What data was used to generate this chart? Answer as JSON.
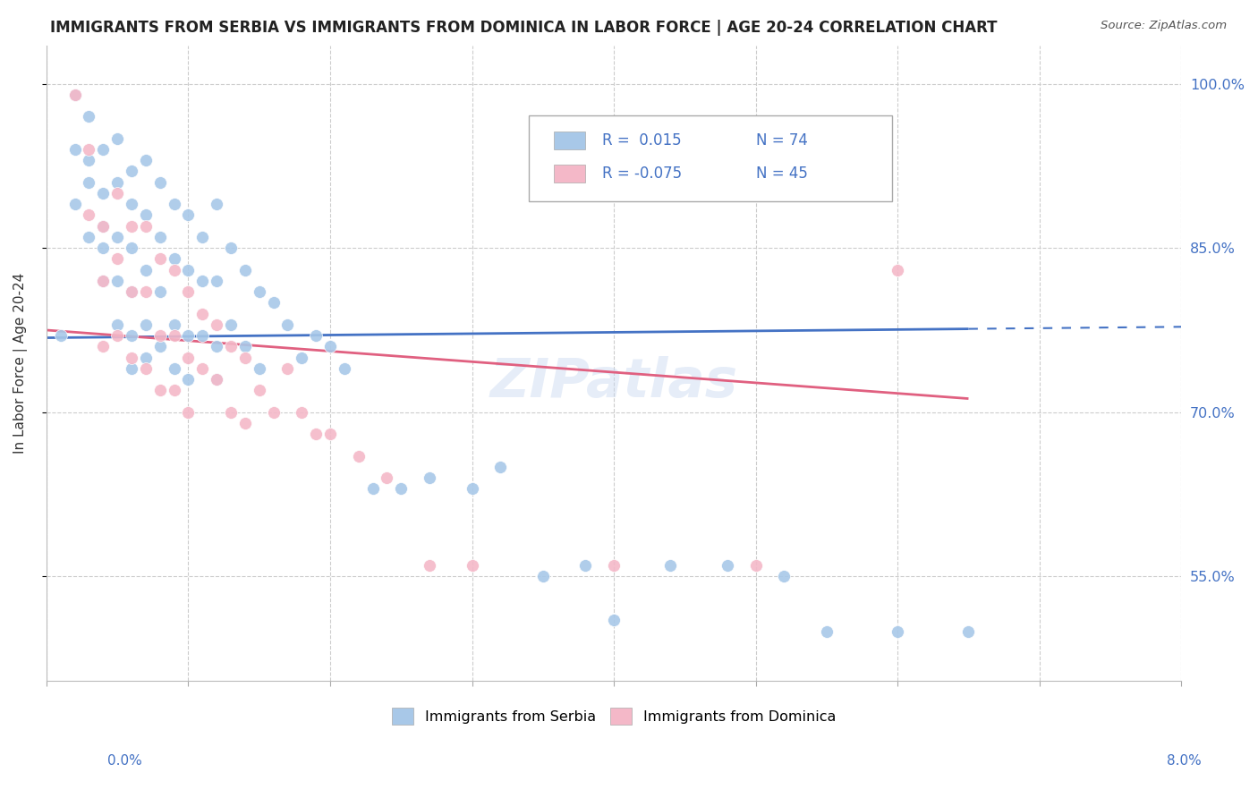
{
  "title": "IMMIGRANTS FROM SERBIA VS IMMIGRANTS FROM DOMINICA IN LABOR FORCE | AGE 20-24 CORRELATION CHART",
  "source": "Source: ZipAtlas.com",
  "ylabel": "In Labor Force | Age 20-24",
  "xmin": 0.0,
  "xmax": 0.08,
  "ymin": 0.455,
  "ymax": 1.035,
  "serbia_R": 0.015,
  "serbia_N": 74,
  "dominica_R": -0.075,
  "dominica_N": 45,
  "serbia_color": "#a8c8e8",
  "dominica_color": "#f4b8c8",
  "serbia_line_color": "#4472c4",
  "dominica_line_color": "#e06080",
  "serbia_line_y0": 0.768,
  "serbia_line_y1": 0.778,
  "serbia_line_solid_end": 0.065,
  "dominica_line_y0": 0.775,
  "dominica_line_y1": 0.698,
  "dominica_line_solid_end": 0.065,
  "serbia_x": [
    0.001,
    0.002,
    0.002,
    0.002,
    0.003,
    0.003,
    0.003,
    0.003,
    0.004,
    0.004,
    0.004,
    0.004,
    0.004,
    0.005,
    0.005,
    0.005,
    0.005,
    0.005,
    0.006,
    0.006,
    0.006,
    0.006,
    0.006,
    0.006,
    0.007,
    0.007,
    0.007,
    0.007,
    0.007,
    0.008,
    0.008,
    0.008,
    0.008,
    0.009,
    0.009,
    0.009,
    0.009,
    0.01,
    0.01,
    0.01,
    0.01,
    0.011,
    0.011,
    0.011,
    0.012,
    0.012,
    0.012,
    0.012,
    0.013,
    0.013,
    0.014,
    0.014,
    0.015,
    0.015,
    0.016,
    0.017,
    0.018,
    0.019,
    0.02,
    0.021,
    0.023,
    0.025,
    0.027,
    0.03,
    0.032,
    0.035,
    0.038,
    0.04,
    0.044,
    0.048,
    0.052,
    0.055,
    0.06,
    0.065
  ],
  "serbia_y": [
    0.77,
    0.99,
    0.94,
    0.89,
    0.97,
    0.93,
    0.91,
    0.86,
    0.94,
    0.9,
    0.87,
    0.85,
    0.82,
    0.95,
    0.91,
    0.86,
    0.82,
    0.78,
    0.92,
    0.89,
    0.85,
    0.81,
    0.77,
    0.74,
    0.93,
    0.88,
    0.83,
    0.78,
    0.75,
    0.91,
    0.86,
    0.81,
    0.76,
    0.89,
    0.84,
    0.78,
    0.74,
    0.88,
    0.83,
    0.77,
    0.73,
    0.86,
    0.82,
    0.77,
    0.89,
    0.82,
    0.76,
    0.73,
    0.85,
    0.78,
    0.83,
    0.76,
    0.81,
    0.74,
    0.8,
    0.78,
    0.75,
    0.77,
    0.76,
    0.74,
    0.63,
    0.63,
    0.64,
    0.63,
    0.65,
    0.55,
    0.56,
    0.51,
    0.56,
    0.56,
    0.55,
    0.5,
    0.5,
    0.5
  ],
  "dominica_x": [
    0.002,
    0.003,
    0.003,
    0.004,
    0.004,
    0.004,
    0.005,
    0.005,
    0.005,
    0.006,
    0.006,
    0.006,
    0.007,
    0.007,
    0.007,
    0.008,
    0.008,
    0.008,
    0.009,
    0.009,
    0.009,
    0.01,
    0.01,
    0.01,
    0.011,
    0.011,
    0.012,
    0.012,
    0.013,
    0.013,
    0.014,
    0.014,
    0.015,
    0.016,
    0.017,
    0.018,
    0.019,
    0.02,
    0.022,
    0.024,
    0.027,
    0.03,
    0.04,
    0.05,
    0.06
  ],
  "dominica_y": [
    0.99,
    0.94,
    0.88,
    0.87,
    0.82,
    0.76,
    0.9,
    0.84,
    0.77,
    0.87,
    0.81,
    0.75,
    0.87,
    0.81,
    0.74,
    0.84,
    0.77,
    0.72,
    0.83,
    0.77,
    0.72,
    0.81,
    0.75,
    0.7,
    0.79,
    0.74,
    0.78,
    0.73,
    0.76,
    0.7,
    0.75,
    0.69,
    0.72,
    0.7,
    0.74,
    0.7,
    0.68,
    0.68,
    0.66,
    0.64,
    0.56,
    0.56,
    0.56,
    0.56,
    0.83
  ],
  "background_color": "#ffffff",
  "grid_color": "#cccccc",
  "yticks": [
    0.55,
    0.7,
    0.85,
    1.0
  ],
  "ytick_labels": [
    "55.0%",
    "70.0%",
    "85.0%",
    "100.0%"
  ],
  "xticks": [
    0.0,
    0.01,
    0.02,
    0.03,
    0.04,
    0.05,
    0.06,
    0.07,
    0.08
  ]
}
